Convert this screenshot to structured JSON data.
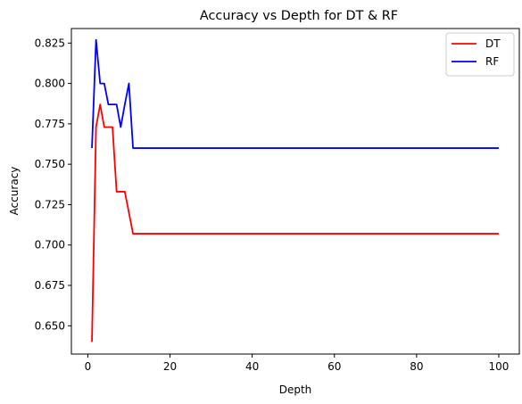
{
  "chart_data": {
    "type": "line",
    "title": "Accuracy vs Depth for DT & RF",
    "xlabel": "Depth",
    "ylabel": "Accuracy",
    "xlim": [
      -4,
      105
    ],
    "ylim": [
      0.6325,
      0.834
    ],
    "xticks": [
      0,
      20,
      40,
      60,
      80,
      100
    ],
    "yticks": [
      0.65,
      0.675,
      0.7,
      0.725,
      0.75,
      0.775,
      0.8,
      0.825
    ],
    "grid": false,
    "legend_position": "top-right",
    "series": [
      {
        "name": "DT",
        "color": "#ff0000",
        "x": [
          1,
          2,
          3,
          4,
          5,
          6,
          7,
          8,
          9,
          10,
          11,
          12,
          100
        ],
        "values": [
          0.64,
          0.773,
          0.787,
          0.773,
          0.773,
          0.773,
          0.733,
          0.733,
          0.733,
          0.72,
          0.707,
          0.707,
          0.707
        ]
      },
      {
        "name": "RF",
        "color": "#0000ff",
        "x": [
          1,
          2,
          3,
          4,
          5,
          6,
          7,
          8,
          9,
          10,
          11,
          12,
          100
        ],
        "values": [
          0.76,
          0.827,
          0.8,
          0.8,
          0.787,
          0.787,
          0.787,
          0.773,
          0.787,
          0.8,
          0.76,
          0.76,
          0.76
        ]
      }
    ]
  }
}
